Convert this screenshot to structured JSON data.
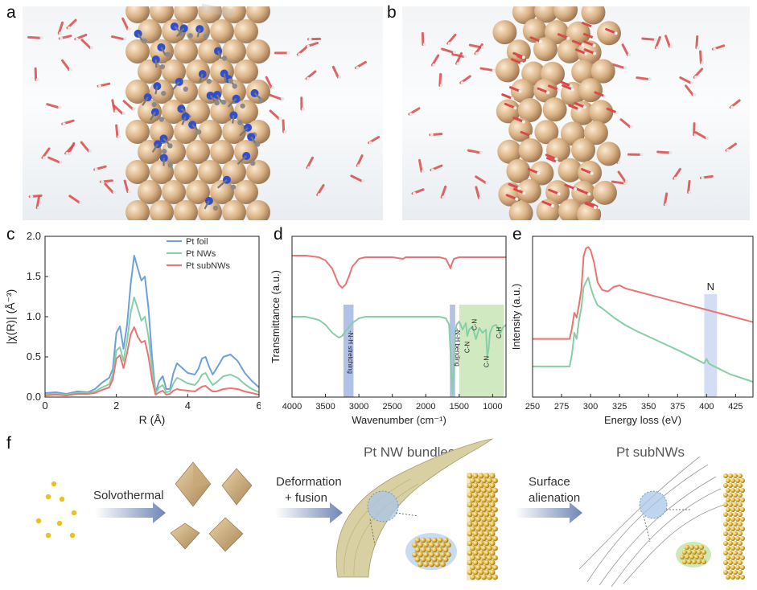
{
  "panel_labels": {
    "a": "a",
    "b": "b",
    "c": "c",
    "d": "d",
    "e": "e",
    "f": "f"
  },
  "icons": {
    "render_a": "pt-nanowire-with-ligands-illustration",
    "render_b": "pt-subnanowire-illustration",
    "octahedra": "pt-octahedron-nanocrystal-illustration",
    "bundle": "pt-nw-bundle-illustration",
    "subnw": "pt-subnw-illustration"
  },
  "colors": {
    "pt_foil": "#6fa0d8",
    "pt_nws": "#86cfa6",
    "pt_subnws": "#ea7474",
    "nh_band": "#9fb1e0",
    "cn_band": "#c4e4b0",
    "n_band": "#c8d4f0",
    "arrow": "#6f86b6"
  },
  "chart_data": [
    {
      "type": "line",
      "panel": "c",
      "title": "",
      "xlabel": "R (Å)",
      "ylabel": "|χ(R)| (Å⁻³)",
      "xlim": [
        0,
        6
      ],
      "ylim": [
        0,
        2.0
      ],
      "xticks": [
        0,
        2,
        4,
        6
      ],
      "yticks": [
        0.0,
        0.5,
        1.0,
        1.5,
        2.0
      ],
      "ytick_labels": [
        "0.0",
        "0.5",
        "1.0",
        "1.5",
        "2.0"
      ],
      "legend_position": "top-right",
      "series": [
        {
          "name": "Pt foil",
          "color": "#6fa0d8",
          "x": [
            0,
            0.3,
            0.6,
            0.9,
            1.2,
            1.4,
            1.6,
            1.8,
            1.9,
            2.0,
            2.1,
            2.2,
            2.3,
            2.4,
            2.5,
            2.6,
            2.7,
            2.8,
            2.9,
            3.0,
            3.1,
            3.2,
            3.3,
            3.4,
            3.5,
            3.6,
            3.7,
            3.8,
            4.0,
            4.2,
            4.3,
            4.4,
            4.5,
            4.6,
            4.7,
            4.8,
            5.0,
            5.2,
            5.4,
            5.6,
            5.8,
            6.0
          ],
          "y": [
            0.05,
            0.06,
            0.04,
            0.07,
            0.06,
            0.1,
            0.18,
            0.24,
            0.35,
            0.8,
            0.88,
            0.6,
            0.9,
            1.4,
            1.76,
            1.6,
            1.45,
            1.5,
            1.1,
            0.5,
            0.05,
            0.2,
            0.26,
            0.1,
            0.1,
            0.3,
            0.42,
            0.38,
            0.3,
            0.28,
            0.35,
            0.48,
            0.5,
            0.38,
            0.28,
            0.35,
            0.5,
            0.53,
            0.45,
            0.3,
            0.2,
            0.12
          ]
        },
        {
          "name": "Pt NWs",
          "color": "#86cfa6",
          "x": [
            0,
            0.3,
            0.6,
            0.9,
            1.2,
            1.4,
            1.6,
            1.8,
            1.9,
            2.0,
            2.1,
            2.2,
            2.3,
            2.4,
            2.5,
            2.6,
            2.7,
            2.8,
            2.9,
            3.0,
            3.1,
            3.2,
            3.3,
            3.4,
            3.5,
            3.6,
            3.7,
            3.8,
            4.0,
            4.2,
            4.3,
            4.4,
            4.5,
            4.6,
            4.7,
            4.8,
            5.0,
            5.2,
            5.4,
            5.6,
            5.8,
            6.0
          ],
          "y": [
            0.03,
            0.04,
            0.03,
            0.05,
            0.05,
            0.07,
            0.12,
            0.16,
            0.28,
            0.58,
            0.62,
            0.45,
            0.7,
            1.05,
            1.24,
            1.1,
            0.95,
            1.0,
            0.75,
            0.35,
            0.05,
            0.12,
            0.15,
            0.06,
            0.07,
            0.17,
            0.24,
            0.22,
            0.17,
            0.15,
            0.2,
            0.28,
            0.3,
            0.22,
            0.15,
            0.18,
            0.26,
            0.28,
            0.24,
            0.16,
            0.1,
            0.06
          ]
        },
        {
          "name": "Pt subNWs",
          "color": "#ea7474",
          "x": [
            0,
            0.3,
            0.6,
            0.9,
            1.2,
            1.4,
            1.6,
            1.8,
            1.9,
            2.0,
            2.1,
            2.2,
            2.3,
            2.4,
            2.5,
            2.6,
            2.7,
            2.8,
            2.9,
            3.0,
            3.1,
            3.2,
            3.3,
            3.4,
            3.5,
            3.6,
            3.7,
            3.8,
            4.0,
            4.2,
            4.3,
            4.4,
            4.5,
            4.6,
            4.7,
            4.8,
            5.0,
            5.2,
            5.4,
            5.6,
            5.8,
            6.0
          ],
          "y": [
            0.02,
            0.03,
            0.02,
            0.04,
            0.04,
            0.05,
            0.09,
            0.12,
            0.22,
            0.48,
            0.52,
            0.36,
            0.55,
            0.78,
            0.87,
            0.75,
            0.68,
            0.7,
            0.5,
            0.22,
            0.03,
            0.06,
            0.08,
            0.03,
            0.04,
            0.08,
            0.1,
            0.09,
            0.08,
            0.07,
            0.1,
            0.13,
            0.14,
            0.1,
            0.07,
            0.07,
            0.1,
            0.11,
            0.1,
            0.07,
            0.05,
            0.03
          ]
        }
      ]
    },
    {
      "type": "line",
      "panel": "d",
      "title": "",
      "xlabel": "Wavenumber (cm⁻¹)",
      "ylabel": "Transmittance (a.u.)",
      "xlim": [
        4000,
        800
      ],
      "xticks": [
        4000,
        3500,
        3000,
        2500,
        2000,
        1500,
        1000
      ],
      "axis_reversed": true,
      "series": [
        {
          "color": "#ea7474",
          "x": [
            4000,
            3800,
            3600,
            3500,
            3400,
            3350,
            3300,
            3250,
            3200,
            3150,
            3100,
            3000,
            2900,
            2800,
            2500,
            2340,
            2300,
            2000,
            1800,
            1700,
            1650,
            1630,
            1610,
            1580,
            1500,
            1400,
            1200,
            1000,
            800
          ],
          "y": [
            0.88,
            0.88,
            0.87,
            0.85,
            0.8,
            0.75,
            0.7,
            0.68,
            0.7,
            0.75,
            0.81,
            0.86,
            0.87,
            0.87,
            0.87,
            0.86,
            0.87,
            0.87,
            0.87,
            0.86,
            0.82,
            0.8,
            0.83,
            0.86,
            0.87,
            0.87,
            0.87,
            0.87,
            0.87
          ]
        },
        {
          "color": "#86cfa6",
          "x": [
            4000,
            3800,
            3600,
            3500,
            3400,
            3300,
            3250,
            3200,
            3100,
            3000,
            2900,
            2500,
            2000,
            1800,
            1700,
            1650,
            1620,
            1600,
            1580,
            1560,
            1540,
            1500,
            1450,
            1400,
            1380,
            1350,
            1300,
            1250,
            1200,
            1150,
            1100,
            1080,
            1060,
            1040,
            1000,
            950,
            900,
            880,
            850,
            800
          ],
          "y": [
            0.5,
            0.5,
            0.48,
            0.45,
            0.4,
            0.37,
            0.38,
            0.41,
            0.46,
            0.49,
            0.5,
            0.5,
            0.5,
            0.5,
            0.49,
            0.45,
            0.2,
            0.02,
            0.2,
            0.4,
            0.45,
            0.47,
            0.42,
            0.46,
            0.38,
            0.42,
            0.44,
            0.36,
            0.43,
            0.4,
            0.42,
            0.25,
            0.3,
            0.4,
            0.44,
            0.45,
            0.42,
            0.4,
            0.43,
            0.45
          ]
        }
      ],
      "annotations": [
        "-N-H stretching",
        "-N-H bending",
        "C-N",
        "C-N",
        "C-N",
        "C-H"
      ]
    },
    {
      "type": "line",
      "panel": "e",
      "title": "",
      "xlabel": "Energy loss (eV)",
      "ylabel": "Intensity (a.u.)",
      "xlim": [
        250,
        440
      ],
      "xticks": [
        250,
        275,
        300,
        325,
        350,
        375,
        400,
        425
      ],
      "series": [
        {
          "color": "#ea7474",
          "x": [
            250,
            270,
            282,
            284,
            286,
            288,
            290,
            292,
            294,
            296,
            298,
            300,
            303,
            306,
            310,
            315,
            320,
            325,
            330,
            340,
            360,
            380,
            400,
            420,
            440
          ],
          "y": [
            0.38,
            0.38,
            0.38,
            0.45,
            0.55,
            0.52,
            0.6,
            0.7,
            0.92,
            0.97,
            0.98,
            0.96,
            0.88,
            0.75,
            0.7,
            0.69,
            0.72,
            0.73,
            0.71,
            0.69,
            0.65,
            0.61,
            0.57,
            0.53,
            0.49
          ]
        },
        {
          "color": "#86cfa6",
          "x": [
            250,
            270,
            282,
            284,
            286,
            288,
            290,
            292,
            294,
            296,
            298,
            300,
            303,
            306,
            310,
            315,
            320,
            330,
            340,
            360,
            380,
            398,
            400,
            402,
            404,
            420,
            440
          ],
          "y": [
            0.2,
            0.2,
            0.2,
            0.28,
            0.42,
            0.38,
            0.5,
            0.58,
            0.72,
            0.75,
            0.78,
            0.72,
            0.65,
            0.6,
            0.58,
            0.55,
            0.52,
            0.47,
            0.43,
            0.36,
            0.29,
            0.22,
            0.25,
            0.22,
            0.21,
            0.15,
            0.1
          ]
        }
      ],
      "annotations": [
        "N"
      ]
    }
  ],
  "panel_f": {
    "step1_label": "Solvothermal",
    "step2_label_line1": "Deformation",
    "step2_label_line2": "+ fusion",
    "stage2_title": "Pt NW bundles",
    "step3_label_line1": "Surface",
    "step3_label_line2": "alienation",
    "stage3_title": "Pt subNWs"
  }
}
